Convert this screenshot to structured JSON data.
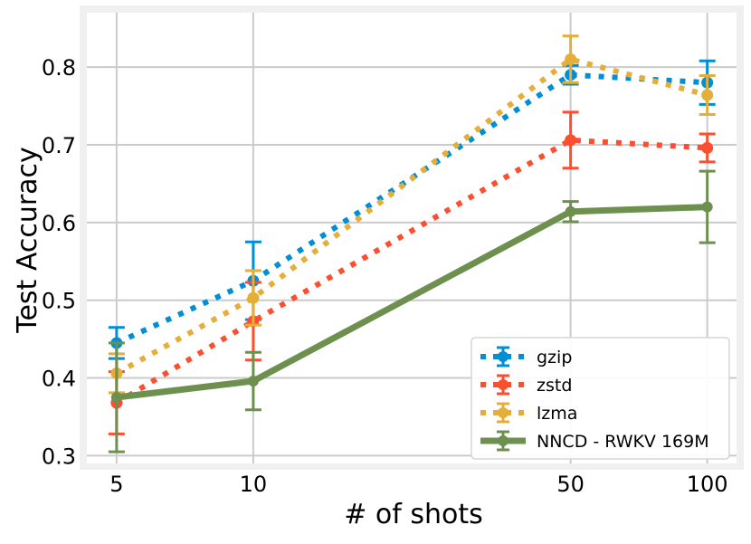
{
  "chart_data": {
    "type": "line",
    "xlabel": "# of shots",
    "ylabel": "Test Accuracy",
    "xscale": "log",
    "x": [
      5,
      10,
      50,
      100
    ],
    "xlim": [
      4.3,
      116
    ],
    "ylim": [
      0.29,
      0.87
    ],
    "xticks": [
      5,
      10,
      50,
      100
    ],
    "xtick_labels": [
      "5",
      "10",
      "50",
      "100"
    ],
    "yticks": [
      0.3,
      0.4,
      0.5,
      0.6,
      0.7,
      0.8
    ],
    "ytick_labels": [
      "0.3",
      "0.4",
      "0.5",
      "0.6",
      "0.7",
      "0.8"
    ],
    "grid": true,
    "legend_position": "lower-right",
    "series": [
      {
        "name": "gzip",
        "color": "#008fd5",
        "style": "dotted",
        "values": [
          0.445,
          0.525,
          0.79,
          0.78
        ],
        "error": [
          0.02,
          0.05,
          0.012,
          0.028
        ]
      },
      {
        "name": "zstd",
        "color": "#fc4f30",
        "style": "dotted",
        "values": [
          0.368,
          0.473,
          0.706,
          0.696
        ],
        "error": [
          0.04,
          0.05,
          0.036,
          0.018
        ]
      },
      {
        "name": "lzma",
        "color": "#e5ae38",
        "style": "dotted",
        "values": [
          0.406,
          0.503,
          0.81,
          0.764
        ],
        "error": [
          0.025,
          0.035,
          0.03,
          0.025
        ]
      },
      {
        "name": "NNCD - RWKV 169M",
        "color": "#6d904f",
        "style": "solid",
        "values": [
          0.375,
          0.396,
          0.614,
          0.62
        ],
        "error": [
          0.07,
          0.037,
          0.013,
          0.046
        ]
      }
    ]
  }
}
